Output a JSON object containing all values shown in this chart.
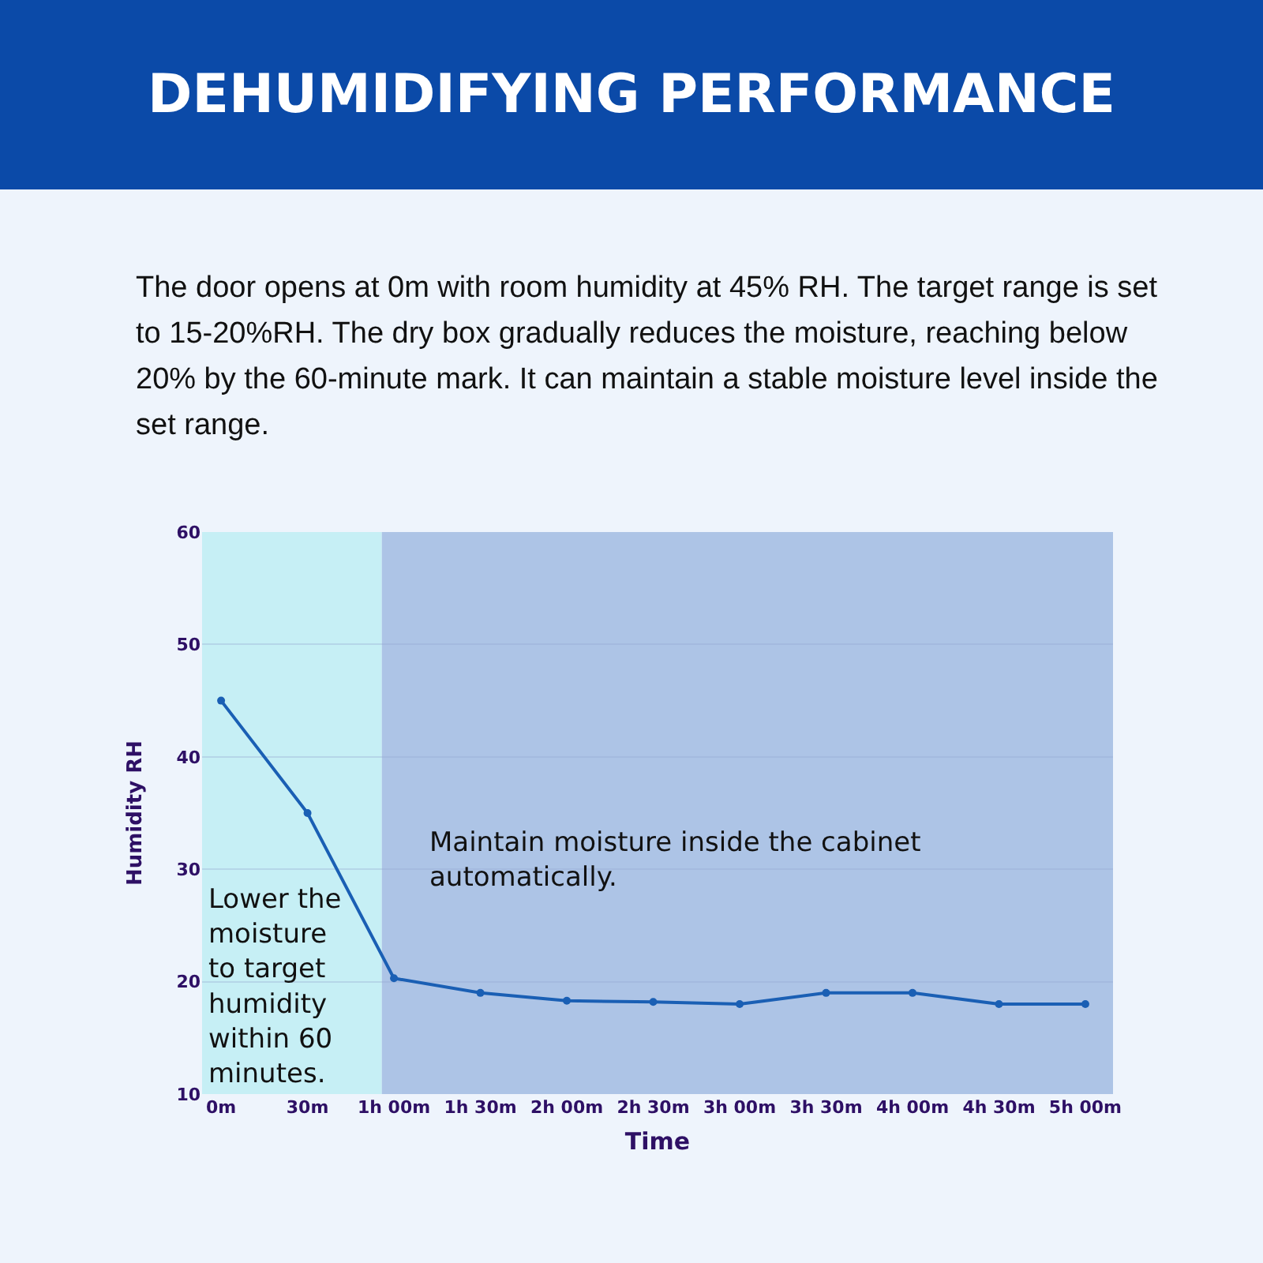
{
  "chart_data": {
    "type": "line",
    "title": "DEHUMIDIFYING PERFORMANCE",
    "subtitle": "The door opens at 0m with room humidity at 45% RH. The target range is set to 15-20%RH. The dry box gradually reduces the moisture, reaching below 20% by the 60-minute mark. It can maintain a stable moisture level inside the set range.",
    "xlabel": "Time",
    "ylabel": "Humidity RH",
    "categories": [
      "0m",
      "30m",
      "1h 00m",
      "1h 30m",
      "2h 00m",
      "2h 30m",
      "3h 00m",
      "3h 30m",
      "4h 00m",
      "4h 30m",
      "5h 00m"
    ],
    "series": [
      {
        "color": "#1a5fb4",
        "values": [
          45,
          35,
          20.3,
          19,
          18.3,
          18.2,
          18,
          19,
          19,
          18,
          18
        ]
      }
    ],
    "ylim": [
      10,
      60
    ],
    "yticks": [
      10,
      20,
      30,
      40,
      50,
      60
    ],
    "bands": [
      {
        "axis": "x",
        "from": "0m",
        "to": "1h 00m",
        "label": "Lower the moisture to target humidity within 60 minutes.",
        "color": "#c6eff5"
      },
      {
        "axis": "x",
        "from": "1h 00m",
        "to": "5h 00m",
        "label": "Maintain moisture inside the cabinet automatically.",
        "color": "#adc4e6"
      }
    ],
    "grid": "y",
    "marker": "circle",
    "line_style": "solid"
  }
}
